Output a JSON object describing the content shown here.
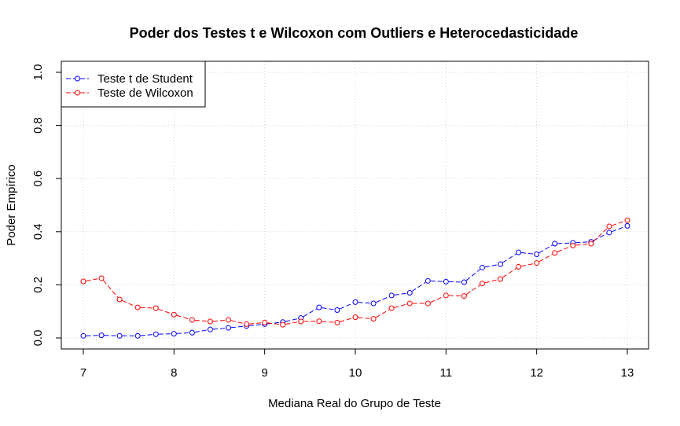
{
  "chart_data": {
    "type": "line",
    "title": "Poder dos Testes t e Wilcoxon com Outliers e Heterocedasticidade",
    "xlabel": "Mediana Real do Grupo de Teste",
    "ylabel": "Poder Empírico",
    "xlim": [
      7,
      13
    ],
    "ylim": [
      0,
      1
    ],
    "xticks": [
      "7",
      "8",
      "9",
      "10",
      "11",
      "12",
      "13"
    ],
    "yticks": [
      "0.0",
      "0.2",
      "0.4",
      "0.6",
      "0.8",
      "1.0"
    ],
    "grid": true,
    "legend_position": "top-left",
    "x": [
      7.0,
      7.2,
      7.4,
      7.6,
      7.8,
      8.0,
      8.2,
      8.4,
      8.6,
      8.8,
      9.0,
      9.2,
      9.4,
      9.6,
      9.8,
      10.0,
      10.2,
      10.4,
      10.6,
      10.8,
      11.0,
      11.2,
      11.4,
      11.6,
      11.8,
      12.0,
      12.2,
      12.4,
      12.6,
      12.8,
      13.0
    ],
    "series": [
      {
        "name": "Teste t de Student",
        "color": "#0000ff",
        "values": [
          0.008,
          0.01,
          0.008,
          0.008,
          0.014,
          0.016,
          0.02,
          0.032,
          0.038,
          0.045,
          0.052,
          0.06,
          0.075,
          0.115,
          0.105,
          0.135,
          0.13,
          0.16,
          0.17,
          0.215,
          0.212,
          0.21,
          0.265,
          0.278,
          0.322,
          0.315,
          0.355,
          0.358,
          0.362,
          0.397,
          0.422
        ]
      },
      {
        "name": "Teste de Wilcoxon",
        "color": "#ff0000",
        "values": [
          0.213,
          0.225,
          0.145,
          0.115,
          0.112,
          0.088,
          0.068,
          0.062,
          0.068,
          0.052,
          0.058,
          0.05,
          0.062,
          0.063,
          0.058,
          0.078,
          0.072,
          0.112,
          0.13,
          0.13,
          0.16,
          0.158,
          0.205,
          0.222,
          0.268,
          0.282,
          0.32,
          0.348,
          0.355,
          0.42,
          0.443
        ]
      }
    ]
  }
}
